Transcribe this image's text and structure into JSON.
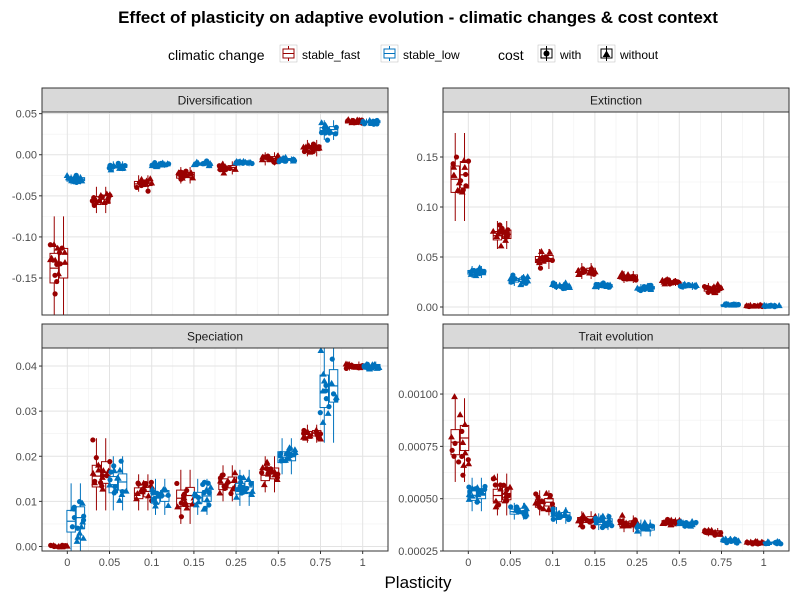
{
  "title": "Effect of plasticity on adaptive evolution - climatic changes & cost context",
  "xlabel": "Plasticity",
  "legend": {
    "climatic_title": "climatic change",
    "climatic_items": [
      {
        "label": "stable_fast",
        "color": "#990000"
      },
      {
        "label": "stable_low",
        "color": "#0072BD"
      }
    ],
    "cost_title": "cost",
    "cost_items": [
      {
        "label": "with",
        "shape": "circle"
      },
      {
        "label": "without",
        "shape": "triangle"
      }
    ]
  },
  "chart_data": {
    "type": "scatter",
    "categories": [
      "0",
      "0.05",
      "0.1",
      "0.15",
      "0.25",
      "0.5",
      "0.75",
      "1"
    ],
    "series": [
      {
        "name": "stable_fast",
        "color": "#990000"
      },
      {
        "name": "stable_low",
        "color": "#0072BD"
      }
    ],
    "panels": [
      {
        "name": "Diversification",
        "ylim": [
          -0.195,
          0.052
        ],
        "yticks": [
          -0.15,
          -0.1,
          -0.05,
          0.0,
          0.05
        ],
        "yticklabels": [
          "-0.15",
          "-0.10",
          "-0.05",
          "0.00",
          "0.05"
        ],
        "stable_fast": {
          "median": [
            -0.135,
            -0.055,
            -0.035,
            -0.025,
            -0.016,
            -0.005,
            0.008,
            0.04
          ],
          "spread": [
            0.03,
            0.008,
            0.005,
            0.005,
            0.004,
            0.004,
            0.005,
            0.002
          ]
        },
        "stable_low": {
          "median": [
            -0.03,
            -0.014,
            -0.012,
            -0.011,
            -0.01,
            -0.006,
            0.03,
            0.04
          ],
          "spread": [
            0.003,
            0.003,
            0.002,
            0.002,
            0.002,
            0.002,
            0.006,
            0.002
          ]
        }
      },
      {
        "name": "Extinction",
        "ylim": [
          -0.008,
          0.195
        ],
        "yticks": [
          0.0,
          0.05,
          0.1,
          0.15
        ],
        "yticklabels": [
          "0.00",
          "0.05",
          "0.10",
          "0.15"
        ],
        "stable_fast": {
          "median": [
            0.13,
            0.072,
            0.048,
            0.036,
            0.03,
            0.025,
            0.018,
            0.001
          ],
          "spread": [
            0.022,
            0.007,
            0.005,
            0.004,
            0.003,
            0.002,
            0.003,
            0.0005
          ]
        },
        "stable_low": {
          "median": [
            0.035,
            0.027,
            0.021,
            0.021,
            0.019,
            0.021,
            0.002,
            0.001
          ],
          "spread": [
            0.003,
            0.003,
            0.002,
            0.002,
            0.002,
            0.002,
            0.0005,
            0.0005
          ]
        }
      },
      {
        "name": "Speciation",
        "ylim": [
          -0.001,
          0.044
        ],
        "yticks": [
          0.0,
          0.01,
          0.02,
          0.03,
          0.04
        ],
        "yticklabels": [
          "0.00",
          "0.01",
          "0.02",
          "0.03",
          "0.04"
        ],
        "stable_fast": {
          "median": [
            0.0,
            0.016,
            0.012,
            0.011,
            0.014,
            0.016,
            0.025,
            0.04
          ],
          "spread": [
            0.0002,
            0.004,
            0.002,
            0.003,
            0.002,
            0.002,
            0.001,
            0.0005
          ]
        },
        "stable_low": {
          "median": [
            0.006,
            0.014,
            0.011,
            0.011,
            0.013,
            0.02,
            0.035,
            0.04
          ],
          "spread": [
            0.004,
            0.003,
            0.002,
            0.002,
            0.002,
            0.002,
            0.006,
            0.0005
          ]
        }
      },
      {
        "name": "Trait evolution",
        "ylim": [
          0.00025,
          0.00122
        ],
        "yticks": [
          0.00025,
          0.0005,
          0.00075,
          0.001
        ],
        "yticklabels": [
          "0.00025",
          "0.00050",
          "0.00075",
          "0.00100"
        ],
        "stable_fast": {
          "median": [
            0.00078,
            0.00052,
            0.00048,
            0.0004,
            0.00038,
            0.00039,
            0.00034,
            0.00029
          ],
          "spread": [
            0.0001,
            5e-05,
            3e-05,
            2e-05,
            2e-05,
            1e-05,
            1e-05,
            5e-06
          ]
        },
        "stable_low": {
          "median": [
            0.00052,
            0.00044,
            0.00042,
            0.00039,
            0.00036,
            0.00038,
            0.0003,
            0.00029
          ],
          "spread": [
            4e-05,
            2e-05,
            2e-05,
            2e-05,
            2e-05,
            1e-05,
            1e-05,
            5e-06
          ]
        }
      }
    ],
    "grid": true,
    "legend_position": "top"
  }
}
